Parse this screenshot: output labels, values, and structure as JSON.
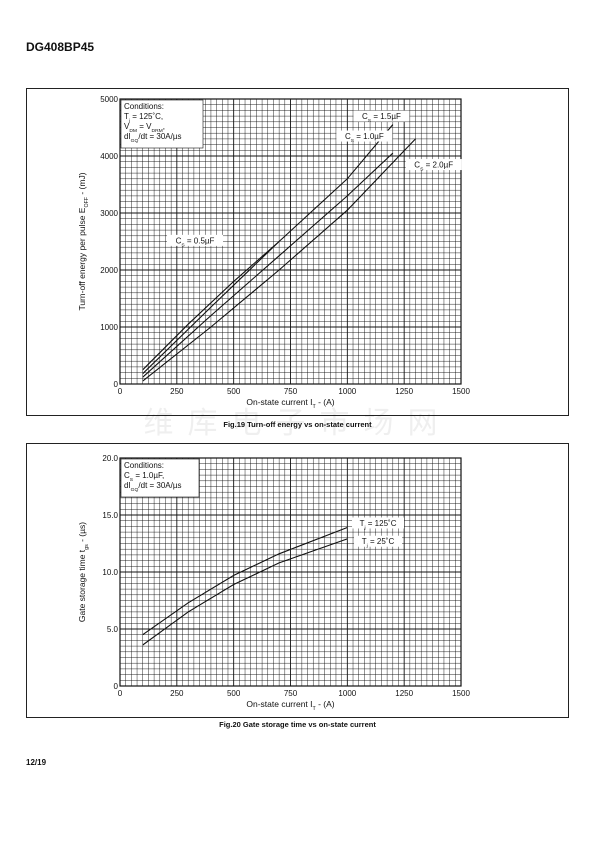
{
  "header": {
    "doc_title": "DG408BP45"
  },
  "footer": {
    "page_number": "12/19"
  },
  "watermark": "维库电子市场网",
  "colors": {
    "line": "#111111",
    "grid": "#111111",
    "background": "#ffffff"
  },
  "chart_data": [
    {
      "type": "line",
      "title": "Fig.19 Turn-off energy vs on-state current",
      "xlabel": {
        "pre": "On-state current I",
        "sub": "T",
        "post": " - (A)"
      },
      "ylabel": {
        "pre": "Turn-off energy per pulse E",
        "sub": "OFF",
        "post": " - (mJ)"
      },
      "xlim": [
        0,
        1500
      ],
      "ylim": [
        0,
        5000
      ],
      "xticks": [
        0,
        250,
        500,
        750,
        1000,
        1250,
        1500
      ],
      "yticks": [
        0,
        1000,
        2000,
        3000,
        4000,
        5000
      ],
      "xtick_labels": [
        "0",
        "250",
        "500",
        "750",
        "1000",
        "1250",
        "1500"
      ],
      "ytick_labels": [
        "0",
        "1000",
        "2000",
        "3000",
        "4000",
        "5000"
      ],
      "grid": true,
      "conditions": [
        {
          "pre": "Conditions:",
          "sub": "",
          "post": ""
        },
        {
          "pre": "T",
          "sub": "j",
          "post": " = 125˚C,"
        },
        {
          "pre": "V",
          "sub": "DM",
          "post": " = V",
          "sub2": "DRM",
          "post2": ","
        },
        {
          "pre": "dI",
          "sub": "GQ",
          "post": "/dt = 30A/µs"
        }
      ],
      "series": [
        {
          "label_pre": "C",
          "label_sub": "S",
          "label_post": " = 0.5µF",
          "x": [
            100,
            300,
            500,
            700
          ],
          "y": [
            250,
            1050,
            1800,
            2500
          ]
        },
        {
          "label_pre": "C",
          "label_sub": "S",
          "label_post": " = 1.0µF",
          "x": [
            100,
            400,
            700,
            1000,
            1200
          ],
          "y": [
            180,
            1350,
            2500,
            3600,
            4550
          ]
        },
        {
          "label_pre": "C",
          "label_sub": "S",
          "label_post": " = 1.5µF",
          "x": [
            100,
            400,
            700,
            1000,
            1200
          ],
          "y": [
            120,
            1200,
            2250,
            3300,
            4050
          ]
        },
        {
          "label_pre": "C",
          "label_sub": "S",
          "label_post": " = 2.0µF",
          "x": [
            100,
            400,
            700,
            1000,
            1300
          ],
          "y": [
            50,
            1000,
            2000,
            3050,
            4300
          ]
        }
      ]
    },
    {
      "type": "line",
      "title": "Fig.20 Gate storage time vs on-state current",
      "xlabel": {
        "pre": "On-state current I",
        "sub": "T",
        "post": " - (A)"
      },
      "ylabel": {
        "pre": "Gate storage time t",
        "sub": "gs",
        "post": " - (µs)"
      },
      "xlim": [
        0,
        1500
      ],
      "ylim": [
        0,
        20
      ],
      "xticks": [
        0,
        250,
        500,
        750,
        1000,
        1250,
        1500
      ],
      "yticks": [
        0,
        5,
        10,
        15,
        20
      ],
      "xtick_labels": [
        "0",
        "250",
        "500",
        "750",
        "1000",
        "1250",
        "1500"
      ],
      "ytick_labels": [
        "0",
        "5.0",
        "10.0",
        "15.0",
        "20.0"
      ],
      "grid": true,
      "conditions": [
        {
          "pre": "Conditions:",
          "sub": "",
          "post": ""
        },
        {
          "pre": "C",
          "sub": "S",
          "post": " = 1.0µF,"
        },
        {
          "pre": "dI",
          "sub": "GQ",
          "post": "/dt = 30A/µs"
        }
      ],
      "series": [
        {
          "label_pre": "T",
          "label_sub": "j",
          "label_post": " = 125˚C",
          "x": [
            100,
            300,
            500,
            700,
            1000
          ],
          "y": [
            4.5,
            7.3,
            9.7,
            11.6,
            13.9
          ]
        },
        {
          "label_pre": "T",
          "label_sub": "j",
          "label_post": " = 25˚C",
          "x": [
            100,
            300,
            500,
            700,
            1000
          ],
          "y": [
            3.6,
            6.5,
            8.9,
            10.8,
            12.9
          ]
        }
      ]
    }
  ]
}
